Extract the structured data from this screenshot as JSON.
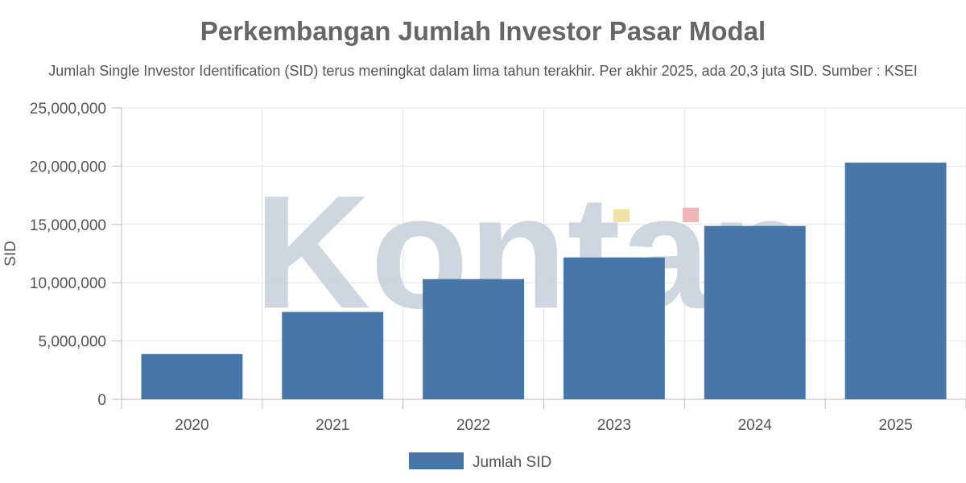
{
  "title": "Perkembangan Jumlah Investor Pasar Modal",
  "subtitle": "Jumlah Single Investor Identification (SID) terus meningkat dalam lima tahun terakhir. Per akhir 2025, ada 20,3 juta SID. Sumber : KSEI",
  "watermark": "Kontan",
  "colors": {
    "bar": "#4677a8",
    "grid": "#e4e4e4",
    "axis": "#bbbbbb",
    "watermark": "#c9d3dc",
    "watermark_accent_yellow": "#f3e2a6",
    "watermark_accent_red": "#f2b5b5"
  },
  "chart_data": {
    "type": "bar",
    "title": "Perkembangan Jumlah Investor Pasar Modal",
    "subtitle": "Jumlah Single Investor Identification (SID) terus meningkat dalam lima tahun terakhir. Per akhir 2025, ada 20,3 juta SID. Sumber : KSEI",
    "categories": [
      "2020",
      "2021",
      "2022",
      "2023",
      "2024",
      "2025"
    ],
    "series": [
      {
        "name": "Jumlah SID",
        "values": [
          3880753,
          7489337,
          10311152,
          12168061,
          14871639,
          20300000
        ]
      }
    ],
    "xlabel": "",
    "ylabel": "SID",
    "ylim": [
      0,
      25000000
    ],
    "yticks": [
      0,
      5000000,
      10000000,
      15000000,
      20000000,
      25000000
    ],
    "ytick_labels": [
      "0",
      "5,000,000",
      "10,000,000",
      "15,000,000",
      "20,000,000",
      "25,000,000"
    ],
    "grid": true,
    "legend": "bottom-center"
  }
}
